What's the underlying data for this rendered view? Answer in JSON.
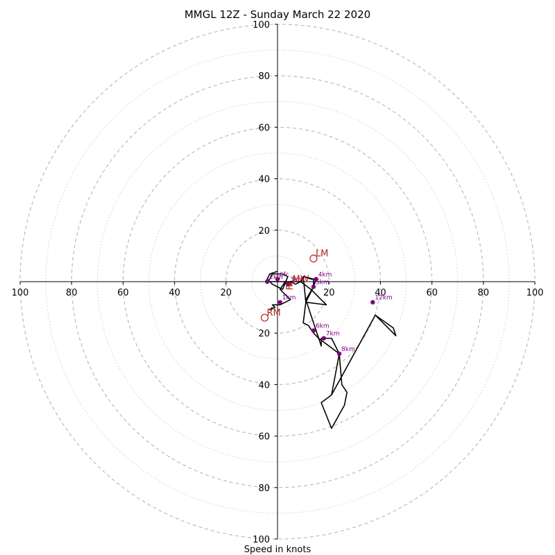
{
  "chart_data": {
    "type": "hodograph",
    "title": "MMGL 12Z - Sunday March 22 2020",
    "xlabel": "Speed in knots",
    "rings_major": [
      20,
      40,
      60,
      80,
      100
    ],
    "rings_minor": [
      10,
      30,
      50,
      70,
      90
    ],
    "axis_limit": 100,
    "x_tick_labels": [
      "100",
      "80",
      "60",
      "40",
      "20",
      "20",
      "40",
      "60",
      "80",
      "100"
    ],
    "y_tick_labels": [
      "100",
      "80",
      "60",
      "40",
      "20",
      "20",
      "40",
      "60",
      "80",
      "100"
    ],
    "trace": {
      "color": "#000000",
      "points": [
        [
          0,
          4
        ],
        [
          -3,
          3
        ],
        [
          -4,
          1
        ],
        [
          -2,
          -1
        ],
        [
          2,
          -3
        ],
        [
          4,
          2
        ],
        [
          2,
          3
        ],
        [
          -2,
          3
        ],
        [
          -3,
          1
        ],
        [
          -4,
          0
        ],
        [
          -2,
          0
        ],
        [
          3,
          0
        ],
        [
          4,
          -1
        ],
        [
          5,
          0
        ],
        [
          7,
          -1
        ],
        [
          9,
          0
        ],
        [
          10,
          2
        ],
        [
          13,
          1
        ],
        [
          15,
          1
        ],
        [
          14,
          -2
        ],
        [
          11,
          -8
        ],
        [
          10,
          -16
        ],
        [
          12,
          -17
        ],
        [
          14,
          -20
        ],
        [
          16,
          -22
        ],
        [
          17,
          -25
        ],
        [
          17,
          -22
        ],
        [
          21,
          -22
        ],
        [
          24,
          -28
        ],
        [
          25,
          -40
        ],
        [
          27,
          -43
        ],
        [
          26,
          -48
        ],
        [
          21,
          -57
        ],
        [
          17,
          -47
        ],
        [
          21,
          -44
        ],
        [
          38,
          -13
        ],
        [
          45,
          -18
        ],
        [
          46,
          -21
        ],
        [
          38,
          -13
        ],
        [
          21,
          -44
        ],
        [
          24,
          -28
        ],
        [
          16,
          -22
        ],
        [
          11,
          -7
        ],
        [
          14,
          -2
        ],
        [
          14,
          0
        ],
        [
          14,
          1
        ],
        [
          10,
          2
        ],
        [
          11,
          -8
        ],
        [
          19,
          -9
        ],
        [
          13,
          -3
        ],
        [
          9,
          0
        ],
        [
          7,
          0
        ],
        [
          3,
          0
        ],
        [
          1,
          -3
        ],
        [
          3,
          -5
        ],
        [
          5,
          -7
        ],
        [
          3,
          -8
        ],
        [
          1,
          -9
        ],
        [
          -2,
          -9
        ],
        [
          -1,
          -10
        ],
        [
          -3,
          -11
        ],
        [
          -2,
          -10
        ]
      ]
    },
    "height_markers": {
      "color": "#800080",
      "points": [
        {
          "label": "6fc",
          "x": 0,
          "y": 1
        },
        {
          "label": "2km",
          "x": -4,
          "y": 0
        },
        {
          "label": "3km",
          "x": 4,
          "y": -1
        },
        {
          "label": "4km",
          "x": 15,
          "y": 1
        },
        {
          "label": "5km",
          "x": 14,
          "y": -2
        },
        {
          "label": "1km",
          "x": 1,
          "y": -8
        },
        {
          "label": "6km",
          "x": 14,
          "y": -19
        },
        {
          "label": "7km",
          "x": 18,
          "y": -22
        },
        {
          "label": "8km",
          "x": 24,
          "y": -28
        },
        {
          "label": "12km",
          "x": 37,
          "y": -8
        }
      ]
    },
    "motion_markers": {
      "color": "#b22222",
      "points": [
        {
          "label": "LM",
          "x": 14,
          "y": 9
        },
        {
          "label": "RM",
          "x": -5,
          "y": -14
        },
        {
          "label": "MW",
          "x": 5,
          "y": -1
        }
      ]
    },
    "extra_glyphs": [
      {
        "text": "L",
        "x": 3,
        "y": -3
      },
      {
        "text": "E",
        "x": 4,
        "y": -3
      }
    ]
  }
}
